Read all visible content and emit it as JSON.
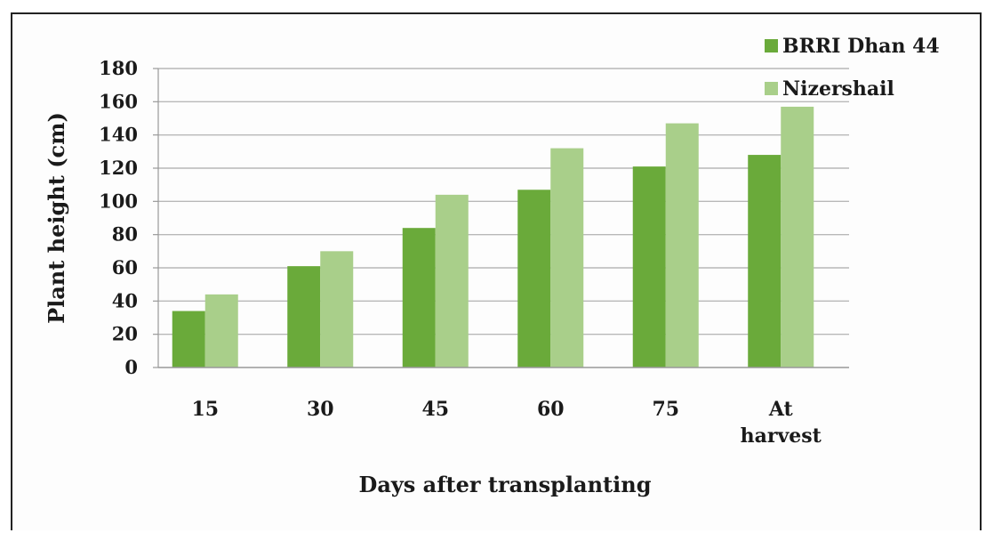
{
  "chart_data": {
    "type": "bar",
    "title": "",
    "xlabel": "Days after transplanting",
    "ylabel": "Plant height (cm)",
    "categories": [
      [
        "15"
      ],
      [
        "30"
      ],
      [
        "45"
      ],
      [
        "60"
      ],
      [
        "75"
      ],
      [
        "At",
        "harvest"
      ]
    ],
    "series": [
      {
        "name": "BRRI Dhan 44",
        "values": [
          34,
          61,
          84,
          107,
          121,
          128
        ],
        "color": "#6aaa3a"
      },
      {
        "name": "Nizershail",
        "values": [
          44,
          70,
          104,
          132,
          147,
          157
        ],
        "color": "#a9cf8a"
      }
    ],
    "ylim": [
      0,
      180
    ],
    "yticks": [
      0,
      20,
      40,
      60,
      80,
      100,
      120,
      140,
      160,
      180
    ],
    "grid": true,
    "legend_position": "top-right"
  }
}
